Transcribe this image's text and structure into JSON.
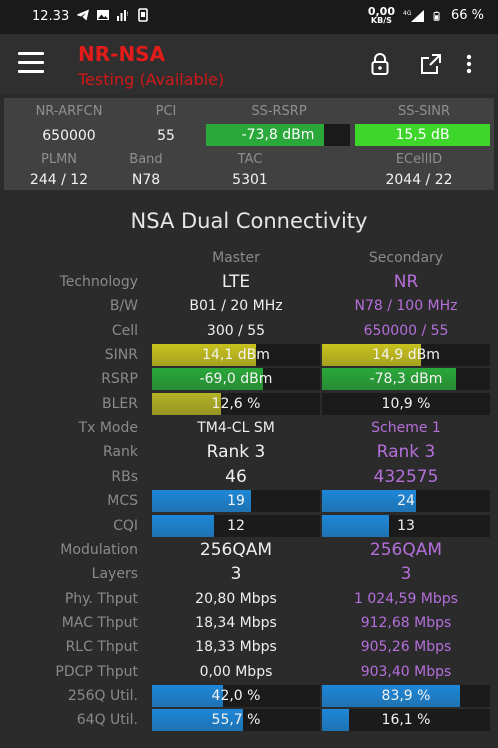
{
  "status_bar": {
    "time": "12.33",
    "speed_value": "0,00",
    "speed_unit": "KB/S",
    "network": "4G",
    "battery": "66 %"
  },
  "app_bar": {
    "title": "NR-NSA",
    "subtitle": "Testing (Available)",
    "icons": [
      "menu-icon",
      "lock-icon",
      "open-external-icon",
      "more-vert-icon"
    ]
  },
  "summary": {
    "row1_labels": [
      "NR-ARFCN",
      "PCI",
      "SS-RSRP",
      "SS-SINR"
    ],
    "nr_arfcn": "650000",
    "pci": "55",
    "ss_rsrp": {
      "text": "-73,8 dBm",
      "fill": 0.82,
      "color": "#2aa83a"
    },
    "ss_sinr": {
      "text": "15,5 dB",
      "fill": 1.0,
      "color": "#3ed62b"
    },
    "row2_labels": [
      "PLMN",
      "Band",
      "TAC",
      "ECellID"
    ],
    "plmn": "244 / 12",
    "band": "N78",
    "tac": "5301",
    "ecellid": "2044 / 22"
  },
  "nsa": {
    "title": "NSA Dual Connectivity",
    "master_header": "Master",
    "secondary_header": "Secondary",
    "rows": [
      {
        "label": "Technology",
        "master": "LTE",
        "secondary": "NR",
        "big": true
      },
      {
        "label": "B/W",
        "master": "B01 / 20 MHz",
        "secondary": "N78 / 100 MHz"
      },
      {
        "label": "Cell",
        "master": "300 / 55",
        "secondary": "650000 / 55"
      },
      {
        "label": "SINR",
        "master": "14,1 dBm",
        "secondary": "14,9 dBm",
        "bar": true,
        "m_fill": 0.62,
        "s_fill": 0.59,
        "m_color": "#c8c21e",
        "s_color": "#c8c21e"
      },
      {
        "label": "RSRP",
        "master": "-69,0 dBm",
        "secondary": "-78,3 dBm",
        "bar": true,
        "m_fill": 0.66,
        "s_fill": 0.8,
        "m_color": "#2aa83a",
        "s_color": "#2aa83a"
      },
      {
        "label": "BLER",
        "master": "12,6 %",
        "secondary": "10,9 %",
        "bar": true,
        "m_fill": 0.41,
        "s_fill": 0.0,
        "m_color": "#b5b326",
        "s_color": "#b5b326"
      },
      {
        "label": "Tx Mode",
        "master": "TM4-CL SM",
        "secondary": "Scheme 1"
      },
      {
        "label": "Rank",
        "master": "Rank 3",
        "secondary": "Rank 3",
        "big": true
      },
      {
        "label": "RBs",
        "master": "46",
        "secondary": "432575",
        "big": true
      },
      {
        "label": "MCS",
        "master": "19",
        "secondary": "24",
        "bar": true,
        "m_fill": 0.59,
        "s_fill": 0.56,
        "m_color": "#1e88d8",
        "s_color": "#1e88d8"
      },
      {
        "label": "CQI",
        "master": "12",
        "secondary": "13",
        "bar": true,
        "m_fill": 0.37,
        "s_fill": 0.4,
        "m_color": "#1e88d8",
        "s_color": "#1e88d8"
      },
      {
        "label": "Modulation",
        "master": "256QAM",
        "secondary": "256QAM",
        "big": true
      },
      {
        "label": "Layers",
        "master": "3",
        "secondary": "3",
        "big": true
      },
      {
        "label": "Phy. Thput",
        "master": "20,80 Mbps",
        "secondary": "1 024,59 Mbps"
      },
      {
        "label": "MAC Thput",
        "master": "18,34 Mbps",
        "secondary": "912,68 Mbps"
      },
      {
        "label": "RLC Thput",
        "master": "18,33 Mbps",
        "secondary": "905,26 Mbps"
      },
      {
        "label": "PDCP Thput",
        "master": "0,00 Mbps",
        "secondary": "903,40 Mbps"
      },
      {
        "label": "256Q Util.",
        "master": "42,0 %",
        "secondary": "83,9 %",
        "bar": true,
        "m_fill": 0.42,
        "s_fill": 0.82,
        "m_color": "#1e88d8",
        "s_color": "#1e88d8"
      },
      {
        "label": "64Q Util.",
        "master": "55,7 %",
        "secondary": "16,1 %",
        "bar": true,
        "m_fill": 0.54,
        "s_fill": 0.16,
        "m_color": "#1e88d8",
        "s_color": "#1e88d8"
      }
    ]
  }
}
